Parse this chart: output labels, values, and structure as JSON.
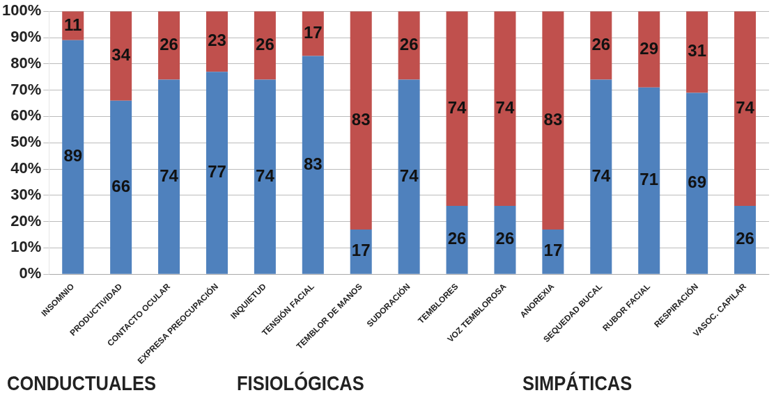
{
  "chart_data": {
    "type": "bar",
    "stacked": true,
    "categories": [
      "INSOMNIO",
      "PRODUCTIVIDAD",
      "CONTACTO OCULAR",
      "EXPRESA PREOCUPACIÓN",
      "INQUIETUD",
      "TENSIÓN FACIAL",
      "TEMBLOR DE MANOS",
      "SUDORACIÓN",
      "TEMBLORES",
      "VOZ TEMBLOROSA",
      "ANOREXIA",
      "SEQUEDAD BUCAL",
      "RUBOR FACIAL",
      "RESPIRACIÓN",
      "VASOC. CAPILAR"
    ],
    "series": [
      {
        "color": "#4f81bd",
        "values": [
          89,
          66,
          74,
          77,
          74,
          83,
          17,
          74,
          26,
          26,
          17,
          74,
          71,
          69,
          26
        ]
      },
      {
        "color": "#c0504d",
        "values": [
          11,
          34,
          26,
          23,
          26,
          17,
          83,
          26,
          74,
          74,
          83,
          26,
          29,
          31,
          74
        ]
      }
    ],
    "ylim": [
      0,
      100
    ],
    "yticks": [
      {
        "value": 0,
        "label": "0%"
      },
      {
        "value": 10,
        "label": "10%"
      },
      {
        "value": 20,
        "label": "20%"
      },
      {
        "value": 30,
        "label": "30%"
      },
      {
        "value": 40,
        "label": "40%"
      },
      {
        "value": 50,
        "label": "50%"
      },
      {
        "value": 60,
        "label": "60%"
      },
      {
        "value": 70,
        "label": "70%"
      },
      {
        "value": 80,
        "label": "80%"
      },
      {
        "value": 90,
        "label": "90%"
      },
      {
        "value": 100,
        "label": "100%"
      }
    ],
    "grid": "y",
    "legend": false,
    "data_labels": true,
    "annotations": [
      "CONDUCTUALES",
      "FISIOLÓGICAS",
      "SIMPÁTICAS"
    ]
  }
}
